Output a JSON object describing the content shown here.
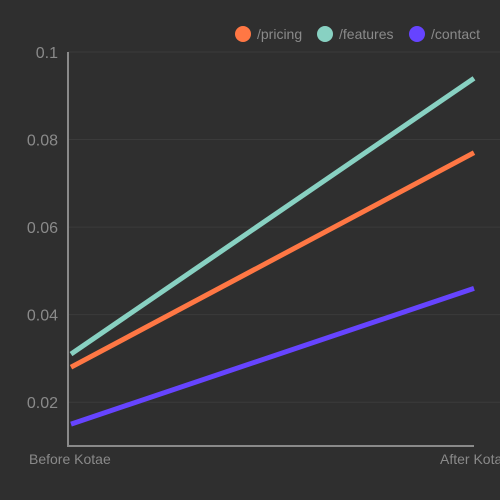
{
  "chart_data": {
    "type": "line",
    "categories": [
      "Before Kotae",
      "After Kotae"
    ],
    "series": [
      {
        "name": "/pricing",
        "values": [
          0.028,
          0.077
        ],
        "color": "#ff7744"
      },
      {
        "name": "/features",
        "values": [
          0.031,
          0.094
        ],
        "color": "#88d1c2"
      },
      {
        "name": "/contact",
        "values": [
          0.015,
          0.046
        ],
        "color": "#6644ff"
      }
    ],
    "title": "",
    "xlabel": "",
    "ylabel": "",
    "ylim": [
      0.01,
      0.1
    ],
    "y_ticks": [
      {
        "value": 0.02,
        "label": "0.02"
      },
      {
        "value": 0.04,
        "label": "0.04"
      },
      {
        "value": 0.06,
        "label": "0.06"
      },
      {
        "value": 0.08,
        "label": "0.08"
      },
      {
        "value": 0.1,
        "label": "0.1"
      }
    ],
    "grid": true,
    "legend_position": "top-right",
    "colors": {
      "background": "#2f2f2f",
      "axis": "#8a8a8a",
      "grid": "#3b3b3b",
      "text": "#8a8a8a"
    }
  }
}
